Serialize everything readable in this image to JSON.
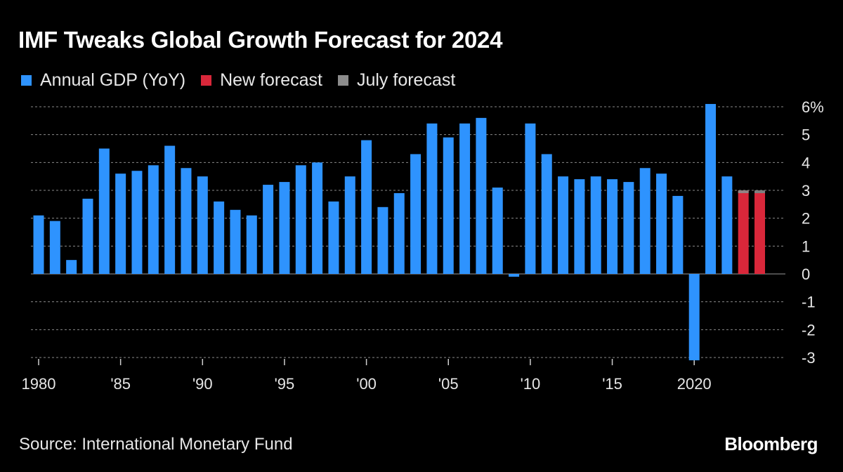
{
  "title": "IMF Tweaks Global Growth Forecast for 2024",
  "legend": [
    {
      "label": "Annual GDP (YoY)",
      "color": "#2e93fe"
    },
    {
      "label": "New forecast",
      "color": "#d9273a"
    },
    {
      "label": "July forecast",
      "color": "#8c8c8c"
    }
  ],
  "source": "Source: International Monetary Fund",
  "brand": "Bloomberg",
  "chart_data": {
    "type": "bar",
    "title": "IMF Tweaks Global Growth Forecast for 2024",
    "x_labels": [
      {
        "year": 1980,
        "text": "1980"
      },
      {
        "year": 1985,
        "text": "'85"
      },
      {
        "year": 1990,
        "text": "'90"
      },
      {
        "year": 1995,
        "text": "'95"
      },
      {
        "year": 2000,
        "text": "'00"
      },
      {
        "year": 2005,
        "text": "'05"
      },
      {
        "year": 2010,
        "text": "'10"
      },
      {
        "year": 2015,
        "text": "'15"
      },
      {
        "year": 2020,
        "text": "2020"
      }
    ],
    "y_ticks": [
      {
        "value": 6,
        "text": "6%"
      },
      {
        "value": 5,
        "text": "5"
      },
      {
        "value": 4,
        "text": "4"
      },
      {
        "value": 3,
        "text": "3"
      },
      {
        "value": 2,
        "text": "2"
      },
      {
        "value": 1,
        "text": "1"
      },
      {
        "value": 0,
        "text": "0"
      },
      {
        "value": -1,
        "text": "-1"
      },
      {
        "value": -2,
        "text": "-2"
      },
      {
        "value": -3,
        "text": "-3"
      }
    ],
    "ylim": [
      -3,
      6
    ],
    "grid": true,
    "legend_position": "top-left",
    "series": [
      {
        "name": "Annual GDP (YoY)",
        "color": "#2e93fe",
        "x": [
          1980,
          1981,
          1982,
          1983,
          1984,
          1985,
          1986,
          1987,
          1988,
          1989,
          1990,
          1991,
          1992,
          1993,
          1994,
          1995,
          1996,
          1997,
          1998,
          1999,
          2000,
          2001,
          2002,
          2003,
          2004,
          2005,
          2006,
          2007,
          2008,
          2009,
          2010,
          2011,
          2012,
          2013,
          2014,
          2015,
          2016,
          2017,
          2018,
          2019,
          2020,
          2021,
          2022
        ],
        "values": [
          2.1,
          1.9,
          0.5,
          2.7,
          4.5,
          3.6,
          3.7,
          3.9,
          4.6,
          3.8,
          3.5,
          2.6,
          2.3,
          2.1,
          3.2,
          3.3,
          3.9,
          4.0,
          2.6,
          3.5,
          4.8,
          2.4,
          2.9,
          4.3,
          5.4,
          4.9,
          5.4,
          5.6,
          3.1,
          -0.1,
          5.4,
          4.3,
          3.5,
          3.4,
          3.5,
          3.4,
          3.3,
          3.8,
          3.6,
          2.8,
          -3.1,
          6.1,
          3.5
        ]
      },
      {
        "name": "New forecast",
        "color": "#d9273a",
        "x": [
          2023,
          2024
        ],
        "values": [
          3.0,
          2.9
        ]
      },
      {
        "name": "July forecast",
        "color": "#8c8c8c",
        "x": [
          2023,
          2024
        ],
        "values": [
          3.0,
          3.0
        ]
      }
    ]
  }
}
